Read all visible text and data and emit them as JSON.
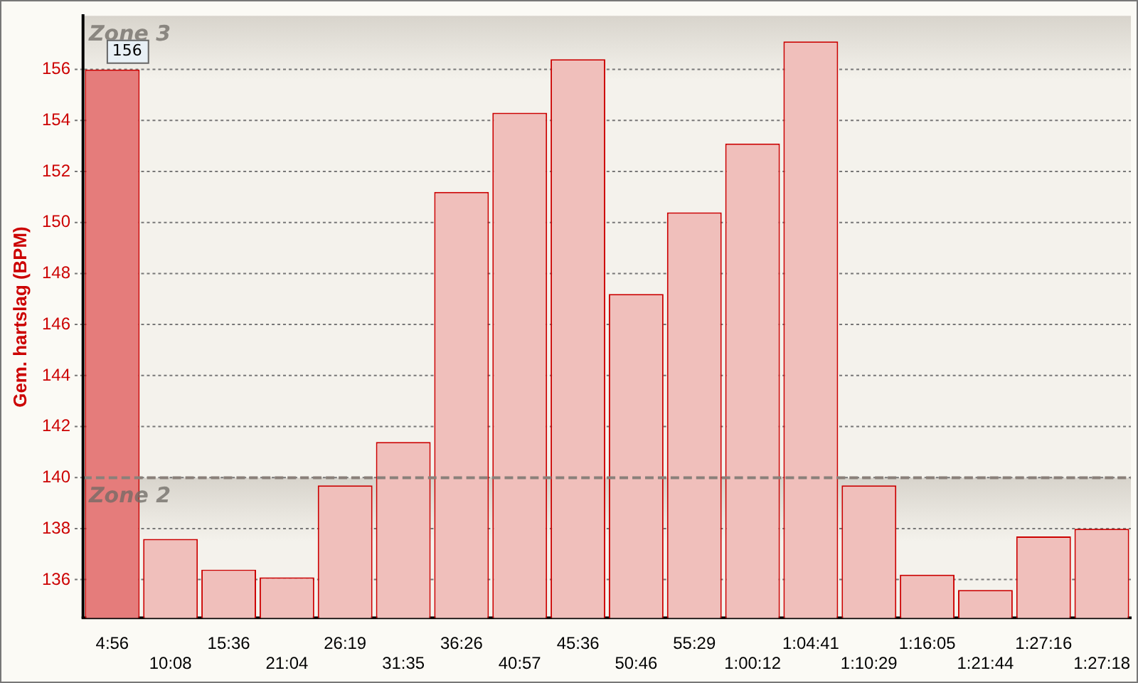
{
  "chart_data": {
    "type": "bar",
    "ylabel": "Gem. hartslag (BPM)",
    "categories": [
      "4:56",
      "10:08",
      "15:36",
      "21:04",
      "26:19",
      "31:35",
      "36:26",
      "40:57",
      "45:36",
      "50:46",
      "55:29",
      "1:00:12",
      "1:04:41",
      "1:10:29",
      "1:16:05",
      "1:21:44",
      "1:27:16",
      "1:27:18"
    ],
    "values": [
      156,
      137.6,
      136.4,
      136.1,
      139.7,
      141.4,
      151.2,
      154.3,
      156.4,
      147.2,
      150.4,
      153.1,
      157.1,
      139.7,
      136.2,
      135.6,
      137.7,
      138.0
    ],
    "colors": [
      "#e57c7b",
      "#f0bfbb",
      "#f0bfbb",
      "#f0bfbb",
      "#f0bfbb",
      "#f0bfbb",
      "#f0bfbb",
      "#f0bfbb",
      "#f0bfbb",
      "#f0bfbb",
      "#f0bfbb",
      "#f0bfbb",
      "#f0bfbb",
      "#f0bfbb",
      "#f0bfbb",
      "#f0bfbb",
      "#f0bfbb",
      "#f0bfbb"
    ],
    "value_labels": [
      "156",
      null,
      null,
      null,
      null,
      null,
      null,
      null,
      null,
      null,
      null,
      null,
      null,
      null,
      null,
      null,
      null,
      null
    ],
    "ylim": [
      134.5,
      158.1
    ],
    "yticks": [
      136,
      138,
      140,
      142,
      144,
      146,
      148,
      150,
      152,
      154,
      156
    ],
    "grid": "y",
    "legend": false,
    "bands": [
      {
        "axis": "y",
        "from": 140,
        "to": 158.1,
        "label": "Zone 3",
        "color": "#d8d4cc"
      },
      {
        "axis": "y",
        "from": 134.5,
        "to": 140,
        "label": "Zone 2",
        "color": "#d8d4cc"
      }
    ],
    "ref_lines": [
      {
        "axis": "y",
        "value": 140,
        "line_style": "dashed",
        "color": "#8a807a"
      }
    ]
  }
}
